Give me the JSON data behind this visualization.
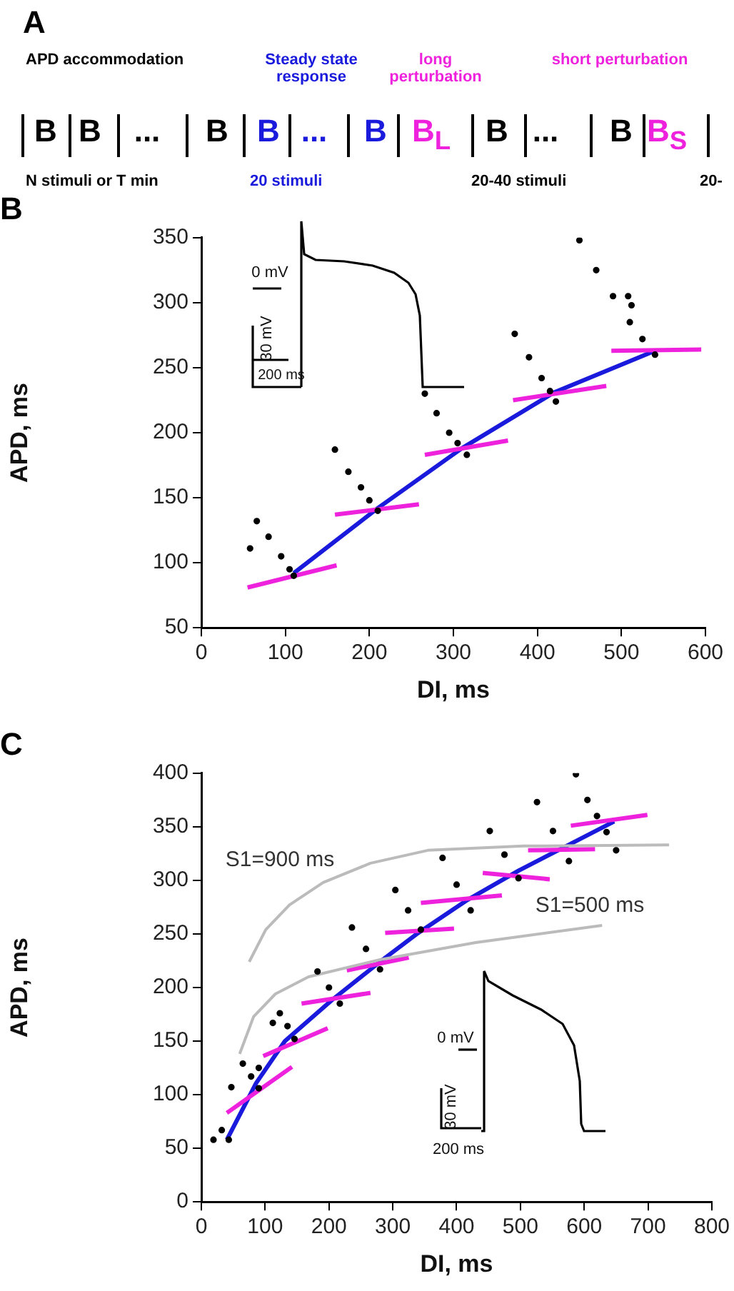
{
  "chart_data": [
    {
      "type": "other",
      "title": "A",
      "annotations": [
        "APD accommodation",
        "Steady state response",
        "long perturbation",
        "short perturbation",
        "B",
        "B",
        "...",
        "B",
        "B",
        "...",
        "B",
        "B$_{L}$",
        "B",
        "...",
        "B",
        "B$_{S}$",
        "N stimuli or T min",
        "20 stimuli",
        "20-40 stimuli",
        "20-"
      ]
    },
    {
      "type": "scatter",
      "title": "B",
      "xlabel": "DI, ms",
      "ylabel": "APD, ms",
      "xlim": [
        0,
        600
      ],
      "xticks": [
        0,
        100,
        200,
        300,
        400,
        500,
        600
      ],
      "ylim": [
        50,
        350
      ],
      "yticks": [
        50,
        100,
        150,
        200,
        250,
        300,
        350
      ],
      "grid": false,
      "legend": false,
      "annotations": [
        "0 mV",
        "30 mV",
        "200 ms"
      ],
      "series": [
        {
          "type": "line",
          "color": "#ee22dd",
          "x": [
            55,
            161
          ],
          "values": [
            81,
            98
          ]
        },
        {
          "type": "line",
          "color": "#ee22dd",
          "x": [
            159,
            259
          ],
          "values": [
            137,
            145
          ]
        },
        {
          "type": "line",
          "color": "#ee22dd",
          "x": [
            266,
            365
          ],
          "values": [
            183,
            194
          ]
        },
        {
          "type": "line",
          "color": "#ee22dd",
          "x": [
            371,
            482
          ],
          "values": [
            225,
            236
          ]
        },
        {
          "type": "line",
          "color": "#ee22dd",
          "x": [
            488,
            595
          ],
          "values": [
            263,
            264
          ]
        },
        {
          "type": "line",
          "color": "#1a1adc",
          "x": [
            110,
            210,
            310,
            420,
            540
          ],
          "values": [
            92,
            142,
            188,
            231,
            263
          ]
        },
        {
          "type": "scatter",
          "marker": "circle",
          "color": "#000000",
          "x": [
            58,
            66,
            80,
            95,
            105,
            110,
            159,
            175,
            190,
            200,
            210,
            266,
            280,
            295,
            305,
            316,
            373,
            390,
            405,
            415,
            422,
            450,
            470,
            490,
            508,
            512,
            510,
            525,
            540
          ],
          "values": [
            111,
            132,
            120,
            105,
            95,
            90,
            187,
            170,
            158,
            148,
            140,
            230,
            215,
            200,
            192,
            183,
            276,
            258,
            242,
            232,
            224,
            348,
            325,
            305,
            305,
            298,
            285,
            272,
            260
          ]
        }
      ]
    },
    {
      "type": "scatter",
      "title": "C",
      "xlabel": "DI, ms",
      "ylabel": "APD, ms",
      "xlim": [
        0,
        800
      ],
      "xticks": [
        0,
        100,
        200,
        300,
        400,
        500,
        600,
        700,
        800
      ],
      "ylim": [
        0,
        400
      ],
      "yticks": [
        0,
        50,
        100,
        150,
        200,
        250,
        300,
        350,
        400
      ],
      "grid": false,
      "legend": false,
      "annotations": [
        "S1=900 ms",
        "S1=500 ms",
        "0 mV",
        "30 mV",
        "200 ms"
      ],
      "series": [
        {
          "type": "line",
          "color": "#bbbbbb",
          "x": [
            75,
            101,
            138,
            191,
            265,
            355,
            505,
            733
          ],
          "values": [
            224,
            254,
            277,
            298,
            316,
            328,
            332,
            333
          ]
        },
        {
          "type": "line",
          "color": "#bbbbbb",
          "x": [
            60,
            82,
            116,
            168,
            280,
            430,
            628
          ],
          "values": [
            138,
            173,
            194,
            210,
            226,
            242,
            258
          ]
        },
        {
          "type": "line",
          "color": "#ee22dd",
          "x": [
            40,
            142
          ],
          "values": [
            83,
            126
          ]
        },
        {
          "type": "line",
          "color": "#ee22dd",
          "x": [
            97,
            198
          ],
          "values": [
            136,
            162
          ]
        },
        {
          "type": "line",
          "color": "#ee22dd",
          "x": [
            157,
            265
          ],
          "values": [
            185,
            195
          ]
        },
        {
          "type": "line",
          "color": "#ee22dd",
          "x": [
            228,
            325
          ],
          "values": [
            216,
            228
          ]
        },
        {
          "type": "line",
          "color": "#ee22dd",
          "x": [
            288,
            396
          ],
          "values": [
            251,
            255
          ]
        },
        {
          "type": "line",
          "color": "#ee22dd",
          "x": [
            344,
            471
          ],
          "values": [
            279,
            286
          ]
        },
        {
          "type": "line",
          "color": "#ee22dd",
          "x": [
            441,
            546
          ],
          "values": [
            307,
            301
          ]
        },
        {
          "type": "line",
          "color": "#ee22dd",
          "x": [
            512,
            617
          ],
          "values": [
            328,
            329
          ]
        },
        {
          "type": "line",
          "color": "#ee22dd",
          "x": [
            579,
            699
          ],
          "values": [
            351,
            361
          ]
        },
        {
          "type": "line",
          "color": "#1a1adc",
          "x": [
            40,
            86,
            131,
            206,
            280,
            340,
            415,
            497,
            572,
            647
          ],
          "values": [
            58,
            111,
            150,
            189,
            224,
            251,
            281,
            309,
            332,
            355
          ]
        },
        {
          "type": "scatter",
          "marker": "circle",
          "color": "#000000",
          "x": [
            19,
            32,
            43,
            47,
            90,
            112,
            65,
            78,
            90,
            123,
            135,
            146,
            182,
            200,
            217,
            236,
            258,
            280,
            304,
            324,
            344,
            378,
            400,
            422,
            452,
            475,
            497,
            526,
            551,
            576,
            587,
            605,
            620,
            635,
            650
          ],
          "values": [
            58,
            67,
            58,
            107,
            125,
            167,
            129,
            117,
            106,
            176,
            164,
            152,
            215,
            200,
            185,
            256,
            236,
            217,
            291,
            272,
            254,
            321,
            296,
            272,
            346,
            324,
            302,
            373,
            346,
            318,
            399,
            375,
            360,
            345,
            328
          ]
        }
      ]
    }
  ]
}
